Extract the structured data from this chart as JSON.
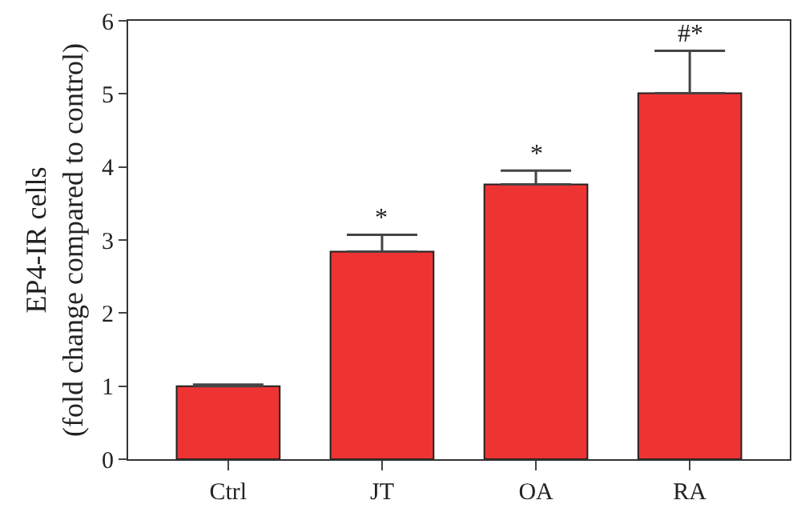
{
  "chart_data": {
    "type": "bar",
    "ylabel": "EP4-IR cells\n(fold change compared to control)",
    "categories": [
      "Ctrl",
      "JT",
      "OA",
      "RA"
    ],
    "values": [
      1.0,
      2.84,
      3.76,
      5.01
    ],
    "errors": [
      [
        1.0,
        1.02
      ],
      [
        2.84,
        3.07
      ],
      [
        3.76,
        3.95
      ],
      [
        5.01,
        5.59
      ]
    ],
    "color": "#ee3333",
    "ylim": [
      0,
      6
    ],
    "yticks": [
      0,
      1,
      2,
      3,
      4,
      5,
      6
    ],
    "annotations": [
      "*",
      "*",
      "#*"
    ]
  }
}
